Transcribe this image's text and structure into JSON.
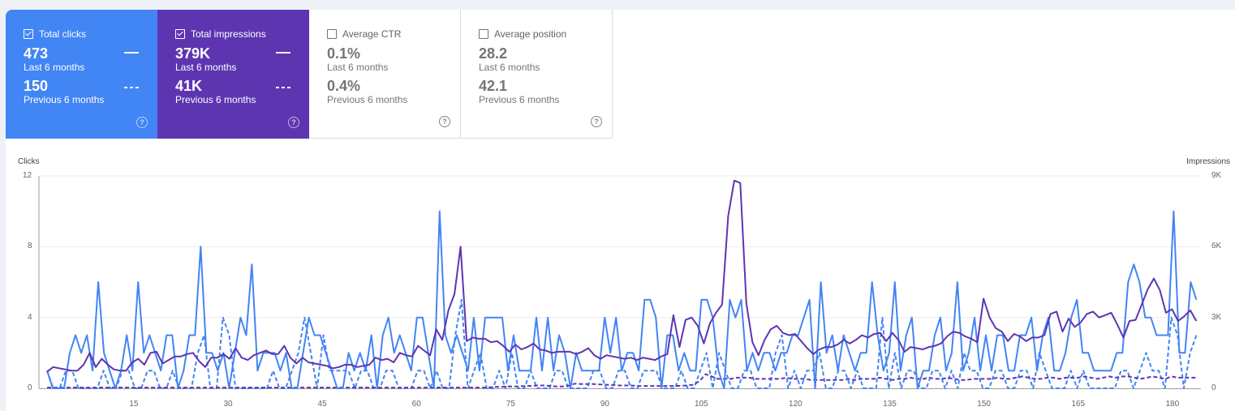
{
  "cards": [
    {
      "label": "Total clicks",
      "checked": true,
      "current_value": "473",
      "current_period": "Last 6 months",
      "previous_value": "150",
      "previous_period": "Previous 6 months",
      "color": "#4285f4"
    },
    {
      "label": "Total impressions",
      "checked": true,
      "current_value": "379K",
      "current_period": "Last 6 months",
      "previous_value": "41K",
      "previous_period": "Previous 6 months",
      "color": "#5e35b1"
    },
    {
      "label": "Average CTR",
      "checked": false,
      "current_value": "0.1%",
      "current_period": "Last 6 months",
      "previous_value": "0.4%",
      "previous_period": "Previous 6 months",
      "color": "#ffffff"
    },
    {
      "label": "Average position",
      "checked": false,
      "current_value": "28.2",
      "current_period": "Last 6 months",
      "previous_value": "42.1",
      "previous_period": "Previous 6 months",
      "color": "#ffffff"
    }
  ],
  "help_glyph": "?",
  "chart_data": {
    "type": "line",
    "left_axis": {
      "label": "Clicks",
      "ticks": [
        "0",
        "4",
        "8",
        "12"
      ],
      "range": [
        0,
        12
      ]
    },
    "right_axis": {
      "label": "Impressions",
      "ticks": [
        "0",
        "3K",
        "6K",
        "9K"
      ],
      "range": [
        0,
        9000
      ]
    },
    "x_ticks": [
      "15",
      "30",
      "45",
      "60",
      "75",
      "90",
      "105",
      "120",
      "135",
      "150",
      "165",
      "180"
    ],
    "x_range": [
      1,
      184
    ],
    "grid": true,
    "series": [
      {
        "name": "Total clicks (Last 6 months)",
        "axis": "left",
        "color": "#4285f4",
        "style": "solid",
        "values": [
          1,
          0,
          0,
          0,
          2,
          3,
          2,
          3,
          1,
          6,
          2,
          1,
          0,
          1,
          3,
          1,
          6,
          2,
          3,
          2,
          1,
          3,
          3,
          0,
          1,
          3,
          3,
          8,
          2,
          2,
          1,
          2,
          0,
          2,
          4,
          3,
          7,
          1,
          2,
          2,
          2,
          1,
          2,
          0,
          0,
          2,
          4,
          3,
          3,
          2,
          1,
          0,
          0,
          2,
          1,
          2,
          1,
          3,
          0,
          3,
          4,
          2,
          3,
          2,
          1,
          4,
          4,
          2,
          0,
          10,
          3,
          2,
          3,
          2,
          1,
          4,
          1,
          4,
          4,
          4,
          4,
          1,
          3,
          1,
          1,
          1,
          4,
          1,
          4,
          1,
          3,
          2,
          0,
          2,
          1,
          1,
          1,
          1,
          4,
          2,
          4,
          1,
          2,
          2,
          1,
          5,
          5,
          4,
          0,
          3,
          3,
          1,
          2,
          1,
          1,
          5,
          5,
          4,
          1,
          0,
          5,
          4,
          5,
          1,
          2,
          1,
          2,
          2,
          1,
          2,
          2,
          3,
          3,
          4,
          5,
          0,
          6,
          2,
          3,
          1,
          3,
          2,
          1,
          2,
          2,
          6,
          3,
          1,
          2,
          6,
          1,
          3,
          4,
          0,
          1,
          1,
          3,
          4,
          1,
          2,
          6,
          1,
          2,
          4,
          1,
          3,
          1,
          3,
          3,
          1,
          1,
          3,
          3,
          4,
          1,
          3,
          4,
          1,
          1,
          2,
          4,
          5,
          2,
          2,
          1,
          1,
          1,
          1,
          2,
          2,
          6,
          7,
          6,
          4,
          4,
          3,
          3,
          3,
          10,
          2,
          2,
          6,
          5
        ]
      },
      {
        "name": "Total clicks (Previous 6 months)",
        "axis": "left",
        "color": "#4285f4",
        "style": "dashed",
        "values": [
          1,
          0,
          0,
          1,
          1,
          0,
          0,
          0,
          0,
          1,
          0,
          0,
          1,
          1,
          0,
          0,
          1,
          1,
          0,
          0,
          1,
          0,
          0,
          0,
          2,
          3,
          0,
          0,
          4,
          3,
          0,
          0,
          0,
          0,
          0,
          0,
          1,
          0,
          0,
          1,
          2,
          4,
          2,
          0,
          3,
          1,
          1,
          1,
          1,
          0,
          1,
          1,
          0,
          0,
          1,
          1,
          0,
          0,
          0,
          1,
          1,
          0,
          1,
          0,
          0,
          3,
          5,
          0,
          1,
          2,
          0,
          0,
          1,
          0,
          2,
          0,
          0,
          1,
          0,
          0,
          0,
          1,
          1,
          0,
          0,
          0,
          0,
          1,
          1,
          0,
          0,
          1,
          1,
          0,
          0,
          1,
          1,
          1,
          0,
          0,
          0,
          1,
          0,
          0,
          1,
          2,
          0,
          2,
          1,
          0,
          0,
          1,
          1,
          0,
          0,
          0,
          2,
          3,
          0,
          1,
          0,
          1,
          1,
          2,
          0,
          0,
          1,
          1,
          0,
          1,
          0,
          0,
          0,
          4,
          0,
          2,
          0,
          1,
          1,
          0,
          0,
          1,
          1,
          0,
          1,
          0,
          2,
          1,
          1,
          0,
          0,
          1,
          1,
          0,
          0,
          1,
          1,
          0,
          2,
          1,
          0,
          0,
          0,
          1,
          0,
          1,
          0,
          0,
          0,
          0,
          0,
          1,
          1,
          0,
          1,
          2,
          1,
          1,
          0,
          4,
          3,
          0,
          2,
          3
        ]
      },
      {
        "name": "Total impressions (Last 6 months)",
        "axis": "right",
        "color": "#5e35b1",
        "style": "solid",
        "values": [
          700,
          900,
          850,
          800,
          750,
          750,
          1000,
          1500,
          900,
          1250,
          1000,
          800,
          750,
          750,
          1100,
          1250,
          1000,
          1500,
          1550,
          1050,
          1200,
          1350,
          1350,
          1450,
          1500,
          1150,
          900,
          1300,
          1300,
          1450,
          1250,
          1700,
          1300,
          1200,
          1400,
          1500,
          1600,
          1450,
          1450,
          1800,
          1300,
          1050,
          1300,
          1100,
          1050,
          1000,
          950,
          850,
          900,
          1000,
          1000,
          900,
          950,
          1000,
          1300,
          1200,
          1250,
          1100,
          1500,
          1400,
          1350,
          1800,
          1600,
          1400,
          2500,
          2050,
          3300,
          4000,
          6000,
          2000,
          2150,
          2100,
          2100,
          1950,
          2000,
          1800,
          1550,
          1850,
          1650,
          1750,
          1900,
          1650,
          1600,
          1500,
          1550,
          1550,
          1550,
          1450,
          1550,
          1700,
          1400,
          1250,
          1400,
          1350,
          1300,
          1250,
          1300,
          1200,
          1300,
          1250,
          1200,
          1350,
          1450,
          3100,
          1750,
          2900,
          3000,
          2650,
          1900,
          2750,
          3200,
          3550,
          7300,
          8800,
          8700,
          3600,
          1950,
          1400,
          2050,
          2500,
          2650,
          2350,
          2250,
          2300,
          2000,
          1700,
          1450,
          1650,
          1750,
          1750,
          1850,
          2050,
          1900,
          2050,
          2250,
          2150,
          2300,
          2350,
          2000,
          2350,
          2050,
          1550,
          1750,
          1700,
          1650,
          1750,
          1800,
          1900,
          2200,
          2400,
          2350,
          2200,
          2100,
          1950,
          3800,
          3000,
          2550,
          2400,
          2000,
          2300,
          2200,
          2000,
          2150,
          2150,
          2250,
          3150,
          3250,
          2400,
          2950,
          2600,
          2800,
          3150,
          3250,
          3000,
          3100,
          3200,
          2700,
          2150,
          2850,
          2900,
          3550,
          4200,
          4650,
          4150,
          3200,
          3350,
          2850,
          3050,
          3300,
          2850
        ]
      },
      {
        "name": "Total impressions (Previous 6 months)",
        "axis": "right",
        "color": "#5e35b1",
        "style": "dashed",
        "values": [
          30,
          30,
          30,
          30,
          30,
          30,
          30,
          30,
          30,
          30,
          30,
          30,
          30,
          30,
          30,
          30,
          30,
          30,
          30,
          30,
          30,
          30,
          30,
          30,
          30,
          30,
          30,
          30,
          30,
          30,
          30,
          30,
          30,
          30,
          30,
          30,
          30,
          30,
          30,
          30,
          30,
          30,
          30,
          30,
          30,
          30,
          30,
          30,
          30,
          30,
          30,
          30,
          30,
          30,
          30,
          30,
          30,
          30,
          30,
          30,
          30,
          30,
          30,
          30,
          30,
          30,
          30,
          30,
          30,
          30,
          30,
          30,
          60,
          60,
          80,
          80,
          80,
          100,
          100,
          120,
          120,
          100,
          80,
          80,
          120,
          200,
          180,
          180,
          180,
          160,
          150,
          140,
          120,
          120,
          120,
          100,
          100,
          100,
          100,
          100,
          100,
          100,
          110,
          120,
          150,
          300,
          600,
          500,
          400,
          400,
          400,
          450,
          450,
          450,
          400,
          400,
          400,
          400,
          400,
          450,
          400,
          400,
          400,
          350,
          350,
          350,
          350,
          350,
          350,
          400,
          350,
          400,
          400,
          400,
          450,
          400,
          350,
          400,
          400,
          450,
          400,
          400,
          450,
          400,
          400,
          450,
          400,
          350,
          350,
          400,
          400,
          400,
          400,
          450,
          400,
          400,
          450,
          500,
          450,
          400,
          400,
          450,
          450,
          400,
          450,
          450,
          450,
          500,
          450,
          400,
          450,
          500,
          450,
          500,
          500,
          450,
          400,
          450,
          500,
          450,
          400,
          500,
          450,
          450,
          450,
          450
        ]
      }
    ]
  }
}
